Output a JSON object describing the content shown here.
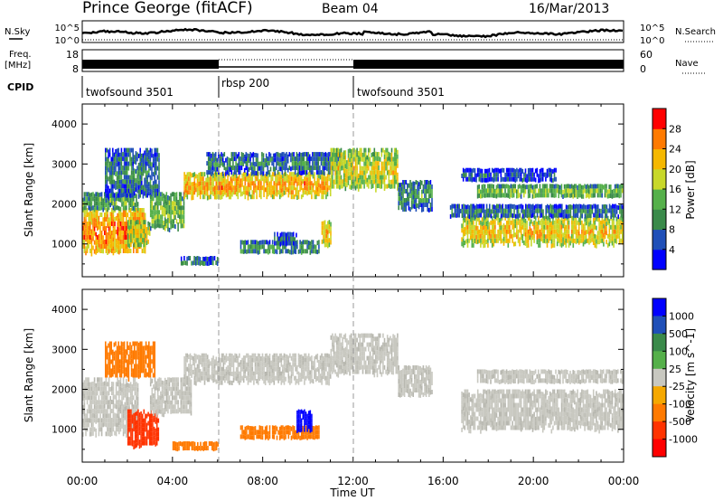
{
  "header": {
    "station": "Prince George (fitACF)",
    "beam": "Beam 04",
    "date": "16/Mar/2013"
  },
  "top_panels": {
    "nsky_label": "N.Sky",
    "nsearch_label": "N.Search",
    "noise_ticks_left": [
      "10^5",
      "10^0"
    ],
    "noise_ticks_right": [
      "10^5",
      "10^0"
    ],
    "freq_label_1": "Freq.",
    "freq_label_2": "[MHz]",
    "freq_ticks": [
      "18",
      "8"
    ],
    "nave_ticks": [
      "60",
      "0"
    ],
    "nave_label": "Nave",
    "cpid_label": "CPID",
    "cpid_segments": [
      {
        "label": "twofsound 3501",
        "start_hour": 0,
        "end_hour": 6
      },
      {
        "label": "rbsp 200",
        "start_hour": 6,
        "end_hour": 12
      },
      {
        "label": "twofsound 3501",
        "start_hour": 12,
        "end_hour": 24
      }
    ]
  },
  "x_axis": {
    "label": "Time UT",
    "ticks": [
      "00:00",
      "04:00",
      "08:00",
      "12:00",
      "16:00",
      "20:00",
      "00:00"
    ]
  },
  "colors": {
    "power_scale": [
      "#0000ff",
      "#1f4fb8",
      "#3a8a4a",
      "#55b04a",
      "#c8d82a",
      "#f5b800",
      "#ff7a00",
      "#ff0000"
    ],
    "velocity_scale": [
      "#0000ff",
      "#1f4fb8",
      "#3a8a4a",
      "#55b04a",
      "#c8c8c0",
      "#f5a800",
      "#ff7a00",
      "#ff3300",
      "#ff0000"
    ],
    "ground_scatter": "#c8c8c0"
  },
  "chart_data": [
    {
      "type": "heatmap",
      "name": "power",
      "ylabel": "Slant Range [km]",
      "xlabel": "Time UT",
      "xlim_hours": [
        0,
        24
      ],
      "ylim": [
        180,
        4500
      ],
      "y_ticks": [
        1000,
        2000,
        3000,
        4000
      ],
      "colorbar_label": "Power [dB]",
      "colorbar_ticks": [
        4,
        8,
        12,
        16,
        20,
        24,
        28
      ],
      "colorbar_range": [
        0,
        32
      ],
      "regions": [
        {
          "t0": 0.0,
          "t1": 2.8,
          "r0": 800,
          "r1": 1900,
          "value": 26
        },
        {
          "t0": 0.0,
          "t1": 2.5,
          "r0": 1900,
          "r1": 2300,
          "value": 14
        },
        {
          "t0": 1.0,
          "t1": 3.4,
          "r0": 2200,
          "r1": 3400,
          "value": 10
        },
        {
          "t0": 2.0,
          "t1": 3.0,
          "r0": 1000,
          "r1": 1600,
          "value": 20
        },
        {
          "t0": 3.0,
          "t1": 4.5,
          "r0": 1400,
          "r1": 2300,
          "value": 16
        },
        {
          "t0": 4.5,
          "t1": 11.0,
          "r0": 2200,
          "r1": 2800,
          "value": 24
        },
        {
          "t0": 5.5,
          "t1": 11.5,
          "r0": 2800,
          "r1": 3300,
          "value": 10
        },
        {
          "t0": 11.0,
          "t1": 14.0,
          "r0": 2400,
          "r1": 3400,
          "value": 20
        },
        {
          "t0": 14.0,
          "t1": 15.5,
          "r0": 1900,
          "r1": 2600,
          "value": 12
        },
        {
          "t0": 7.0,
          "t1": 10.5,
          "r0": 800,
          "r1": 1100,
          "value": 12
        },
        {
          "t0": 8.5,
          "t1": 9.5,
          "r0": 1000,
          "r1": 1300,
          "value": 8
        },
        {
          "t0": 10.6,
          "t1": 11.0,
          "r0": 1000,
          "r1": 1600,
          "value": 22
        },
        {
          "t0": 4.3,
          "t1": 6.0,
          "r0": 500,
          "r1": 700,
          "value": 10
        },
        {
          "t0": 16.8,
          "t1": 24.0,
          "r0": 1000,
          "r1": 1700,
          "value": 22
        },
        {
          "t0": 16.3,
          "t1": 24.0,
          "r0": 1700,
          "r1": 2000,
          "value": 10
        },
        {
          "t0": 17.5,
          "t1": 24.0,
          "r0": 2200,
          "r1": 2500,
          "value": 16
        },
        {
          "t0": 16.8,
          "t1": 21.0,
          "r0": 2600,
          "r1": 2900,
          "value": 8
        }
      ]
    },
    {
      "type": "heatmap",
      "name": "velocity",
      "ylabel": "Slant Range [km]",
      "xlabel": "Time UT",
      "xlim_hours": [
        0,
        24
      ],
      "ylim": [
        180,
        4500
      ],
      "y_ticks": [
        1000,
        2000,
        3000,
        4000
      ],
      "colorbar_label": "Velocity [m s^-1]",
      "colorbar_ticks": [
        1000,
        500,
        100,
        25,
        -25,
        -100,
        -500,
        -1000
      ],
      "regions": [
        {
          "t0": 0.0,
          "t1": 2.5,
          "r0": 900,
          "r1": 2300,
          "value": "ground"
        },
        {
          "t0": 1.0,
          "t1": 3.2,
          "r0": 2300,
          "r1": 3200,
          "value": -300
        },
        {
          "t0": 2.0,
          "t1": 3.4,
          "r0": 600,
          "r1": 1500,
          "value": -800
        },
        {
          "t0": 3.0,
          "t1": 4.8,
          "r0": 1400,
          "r1": 2300,
          "value": "ground"
        },
        {
          "t0": 4.5,
          "t1": 11.0,
          "r0": 2200,
          "r1": 2900,
          "value": "ground"
        },
        {
          "t0": 11.0,
          "t1": 14.0,
          "r0": 2400,
          "r1": 3400,
          "value": "ground"
        },
        {
          "t0": 14.0,
          "t1": 15.5,
          "r0": 1900,
          "r1": 2600,
          "value": "ground"
        },
        {
          "t0": 7.0,
          "t1": 10.5,
          "r0": 800,
          "r1": 1100,
          "value": -150
        },
        {
          "t0": 9.5,
          "t1": 10.2,
          "r0": 1000,
          "r1": 1500,
          "value": 600
        },
        {
          "t0": 4.0,
          "t1": 6.0,
          "r0": 500,
          "r1": 700,
          "value": -400
        },
        {
          "t0": 16.8,
          "t1": 24.0,
          "r0": 1000,
          "r1": 2000,
          "value": "ground"
        },
        {
          "t0": 17.5,
          "t1": 24.0,
          "r0": 2200,
          "r1": 2500,
          "value": "ground"
        }
      ]
    }
  ]
}
